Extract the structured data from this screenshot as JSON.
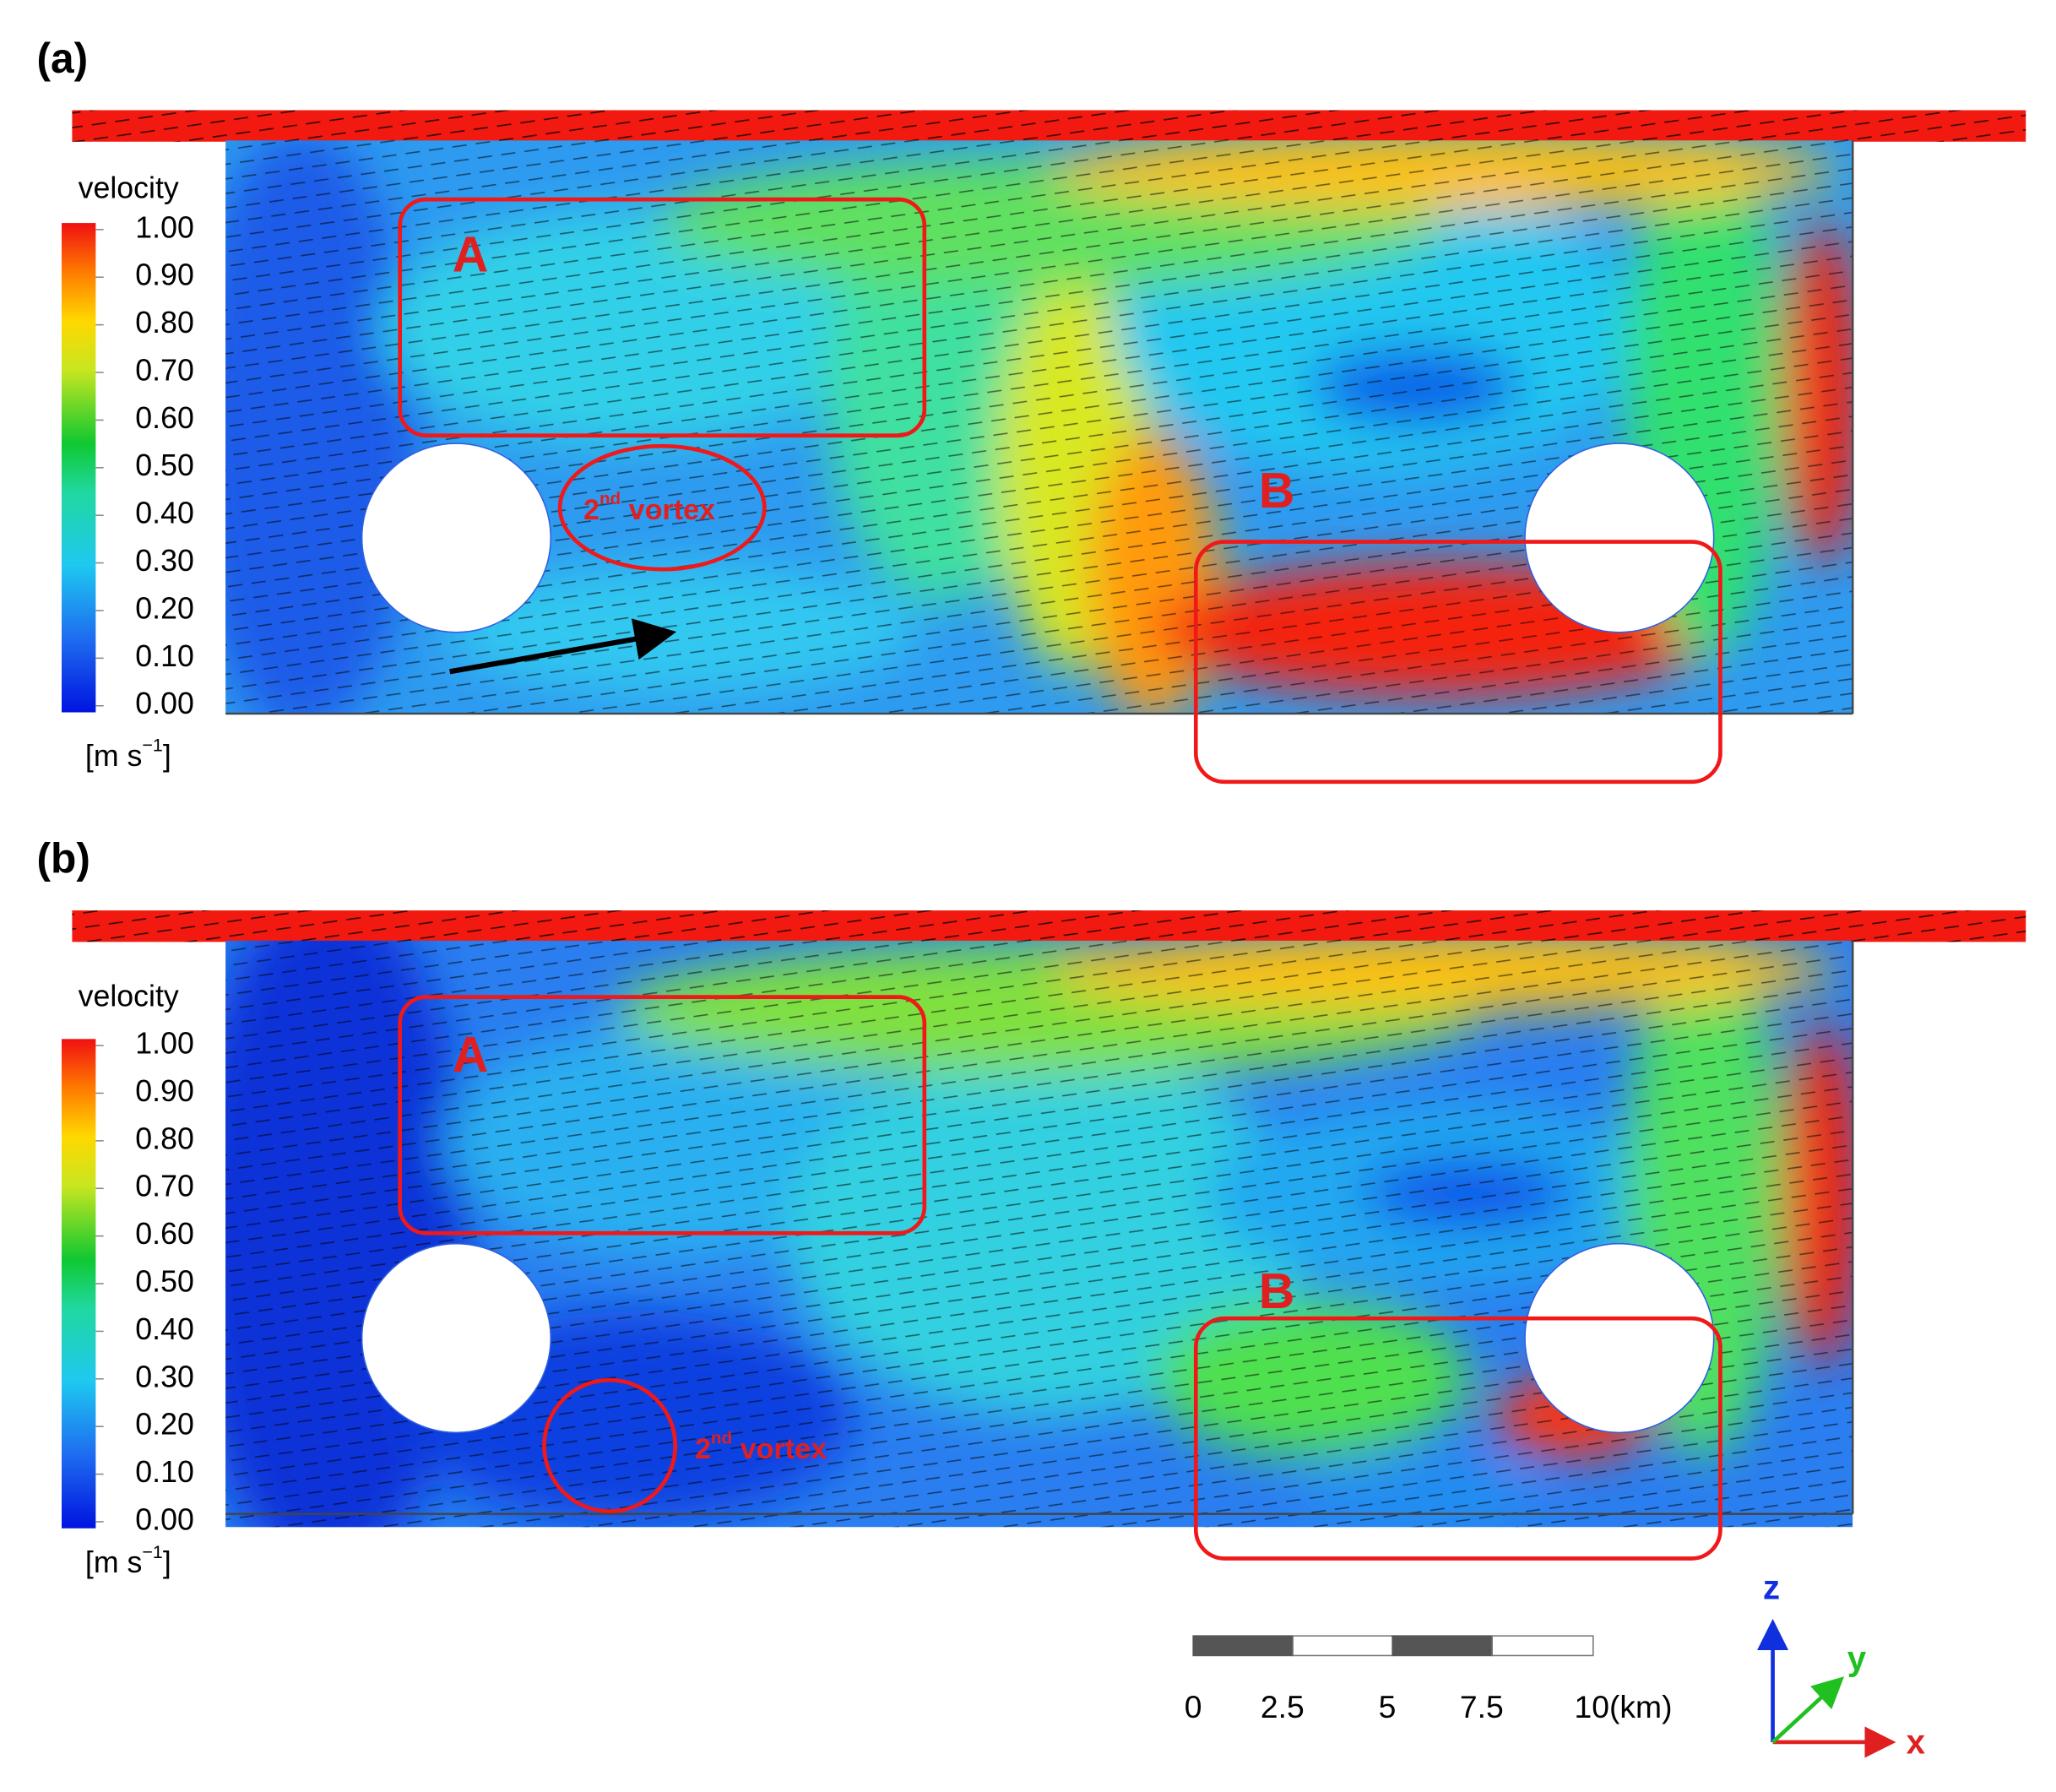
{
  "panels": [
    {
      "label": "(a)",
      "colorbar": {
        "title": "velocity",
        "ticks": [
          "1.00",
          "0.90",
          "0.80",
          "0.70",
          "0.60",
          "0.50",
          "0.40",
          "0.30",
          "0.20",
          "0.10",
          "0.00"
        ],
        "unit": {
          "base": "[m s",
          "sup": "−1",
          "rest": "]"
        }
      },
      "regions": [
        "A",
        "B"
      ],
      "vortex": {
        "base": "2",
        "sup": "nd",
        "rest": " vortex"
      }
    },
    {
      "label": "(b)",
      "colorbar": {
        "title": "velocity",
        "ticks": [
          "1.00",
          "0.90",
          "0.80",
          "0.70",
          "0.60",
          "0.50",
          "0.40",
          "0.30",
          "0.20",
          "0.10",
          "0.00"
        ],
        "unit": {
          "base": "[m s",
          "sup": "−1",
          "rest": "]"
        }
      },
      "regions": [
        "A",
        "B"
      ],
      "vortex": {
        "base": "2",
        "sup": "nd",
        "rest": " vortex"
      }
    }
  ],
  "scale_bar": {
    "labels": [
      "0",
      "2.5",
      "5",
      "7.5",
      "10(km)"
    ]
  },
  "axes": {
    "z": "z",
    "y": "y",
    "x": "x"
  }
}
